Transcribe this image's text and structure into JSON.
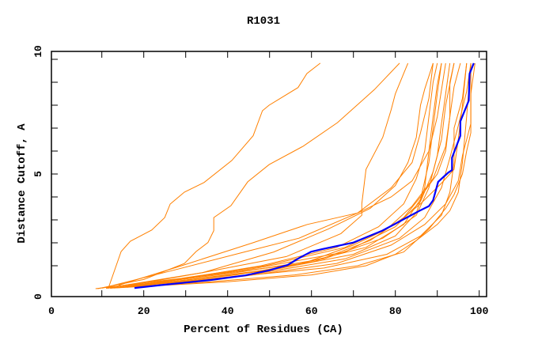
{
  "chart_data": {
    "type": "line",
    "title": "R1031",
    "xlabel": "Percent of Residues (CA)",
    "ylabel": "Distance Cutoff, A",
    "xlim": [
      0,
      100
    ],
    "ylim": [
      0,
      10
    ],
    "x_ticks": [
      "0",
      "20",
      "40",
      "60",
      "80",
      "100"
    ],
    "y_ticks": [
      "0",
      "5",
      "10"
    ],
    "grid": false,
    "colors": {
      "models": "#ff8000",
      "highlight": "#0000ff"
    },
    "series": [
      {
        "highlight": false,
        "points": [
          [
            11.5,
            0
          ],
          [
            14.6,
            1.62
          ],
          [
            16.8,
            2.07
          ],
          [
            21.9,
            2.56
          ],
          [
            25,
            3.1
          ],
          [
            26.3,
            3.69
          ],
          [
            29.7,
            4.21
          ],
          [
            34.4,
            4.63
          ],
          [
            41,
            5.59
          ],
          [
            46.1,
            6.67
          ],
          [
            48.3,
            7.76
          ],
          [
            49.9,
            8
          ],
          [
            56.8,
            8.77
          ],
          [
            58.9,
            9.38
          ],
          [
            62.1,
            9.83
          ]
        ]
      },
      {
        "highlight": false,
        "points": [
          [
            9,
            0
          ],
          [
            20,
            0.4
          ],
          [
            29.7,
            1.1
          ],
          [
            32.5,
            1.62
          ],
          [
            35.3,
            2.01
          ],
          [
            36.7,
            2.53
          ],
          [
            36.7,
            3.1
          ],
          [
            40.8,
            3.62
          ],
          [
            44.8,
            4.66
          ],
          [
            49.9,
            5.41
          ],
          [
            58,
            6.21
          ],
          [
            66.2,
            7.24
          ],
          [
            75,
            8.68
          ],
          [
            81,
            9.83
          ]
        ]
      },
      {
        "highlight": false,
        "points": [
          [
            12,
            0.02
          ],
          [
            36,
            0.6
          ],
          [
            58,
            1.1
          ],
          [
            70,
            1.9
          ],
          [
            78,
            2.6
          ],
          [
            84,
            3.6
          ],
          [
            89,
            4.8
          ],
          [
            92,
            6.2
          ],
          [
            93,
            7.5
          ],
          [
            94,
            8.8
          ],
          [
            95.5,
            9.83
          ]
        ]
      },
      {
        "highlight": false,
        "points": [
          [
            13,
            0.03
          ],
          [
            42,
            0.7
          ],
          [
            63,
            1.3
          ],
          [
            77,
            2.2
          ],
          [
            85,
            3.2
          ],
          [
            88,
            4.4
          ],
          [
            90,
            5.8
          ],
          [
            91,
            7.2
          ],
          [
            92,
            8.5
          ],
          [
            93,
            9.83
          ]
        ]
      },
      {
        "highlight": false,
        "points": [
          [
            14,
            0.05
          ],
          [
            47,
            0.9
          ],
          [
            68,
            1.6
          ],
          [
            80,
            2.7
          ],
          [
            86,
            3.8
          ],
          [
            89,
            5.1
          ],
          [
            91,
            6.5
          ],
          [
            92,
            8.0
          ],
          [
            94,
            9.83
          ]
        ]
      },
      {
        "highlight": false,
        "points": [
          [
            12,
            0.03
          ],
          [
            40,
            0.5
          ],
          [
            63,
            0.9
          ],
          [
            78,
            1.5
          ],
          [
            86,
            2.3
          ],
          [
            91,
            3.2
          ],
          [
            93,
            4.2
          ],
          [
            94,
            5.5
          ],
          [
            94,
            7.0
          ],
          [
            96,
            8.3
          ],
          [
            97,
            9.83
          ]
        ]
      },
      {
        "highlight": false,
        "points": [
          [
            16,
            0.06
          ],
          [
            53,
            0.9
          ],
          [
            73,
            1.8
          ],
          [
            82,
            2.8
          ],
          [
            86,
            3.9
          ],
          [
            88,
            5.5
          ],
          [
            89,
            7.0
          ],
          [
            90,
            8.5
          ],
          [
            91,
            9.83
          ]
        ]
      },
      {
        "highlight": false,
        "points": [
          [
            11,
            0.02
          ],
          [
            36,
            0.3
          ],
          [
            56,
            0.6
          ],
          [
            71,
            1.0
          ],
          [
            82,
            1.6
          ],
          [
            88,
            2.6
          ],
          [
            92,
            3.5
          ],
          [
            94,
            4.1
          ],
          [
            96,
            5.0
          ],
          [
            97,
            6.0
          ],
          [
            98,
            6.8
          ],
          [
            98,
            9.83
          ]
        ]
      },
      {
        "highlight": false,
        "points": [
          [
            18,
            0.1
          ],
          [
            48,
            1.0
          ],
          [
            66,
            1.8
          ],
          [
            76,
            2.7
          ],
          [
            82,
            3.7
          ],
          [
            85,
            4.8
          ],
          [
            87,
            6.0
          ],
          [
            88,
            7.5
          ],
          [
            89,
            9.0
          ],
          [
            90,
            9.83
          ]
        ]
      },
      {
        "highlight": false,
        "points": [
          [
            13,
            0.03
          ],
          [
            45,
            0.6
          ],
          [
            68,
            1.3
          ],
          [
            81,
            2.2
          ],
          [
            87,
            3.1
          ],
          [
            91,
            4.4
          ],
          [
            93,
            5.7
          ],
          [
            95,
            7.1
          ],
          [
            97,
            8.6
          ],
          [
            98,
            9.83
          ]
        ]
      },
      {
        "highlight": false,
        "points": [
          [
            15,
            0.06
          ],
          [
            50,
            0.8
          ],
          [
            70,
            1.5
          ],
          [
            80,
            2.3
          ],
          [
            85,
            3.3
          ],
          [
            87,
            4.4
          ],
          [
            88,
            6.0
          ],
          [
            89,
            7.5
          ],
          [
            90,
            8.9
          ],
          [
            91,
            9.83
          ]
        ]
      },
      {
        "highlight": false,
        "points": [
          [
            12,
            0.03
          ],
          [
            42,
            0.6
          ],
          [
            61,
            1.2
          ],
          [
            74,
            2.1
          ],
          [
            82,
            3.1
          ],
          [
            86,
            4.0
          ],
          [
            90,
            5.0
          ],
          [
            92,
            6.0
          ],
          [
            93,
            7.5
          ],
          [
            93,
            9.0
          ],
          [
            94,
            9.83
          ]
        ]
      },
      {
        "highlight": false,
        "points": [
          [
            8.5,
            0
          ],
          [
            29,
            0.45
          ],
          [
            49,
            1.0
          ],
          [
            68,
            1.8
          ],
          [
            80,
            2.8
          ],
          [
            86,
            3.7
          ],
          [
            91,
            4.6
          ],
          [
            94,
            5.2
          ],
          [
            95,
            6.5
          ],
          [
            96,
            8.0
          ],
          [
            97,
            9.83
          ]
        ]
      },
      {
        "highlight": false,
        "points": [
          [
            11,
            0.02
          ],
          [
            34,
            0.7
          ],
          [
            51,
            1.6
          ],
          [
            64,
            2.6
          ],
          [
            74,
            3.5
          ],
          [
            80,
            4.5
          ],
          [
            83,
            5.5
          ],
          [
            85,
            6.6
          ],
          [
            86,
            8.0
          ],
          [
            87,
            8.7
          ],
          [
            89,
            9.83
          ]
        ]
      },
      {
        "highlight": false,
        "points": [
          [
            14,
            0.15
          ],
          [
            29,
            1.0
          ],
          [
            46,
            2.0
          ],
          [
            59,
            2.8
          ],
          [
            71,
            3.3
          ],
          [
            79,
            4.4
          ],
          [
            84,
            5.5
          ],
          [
            86,
            6.8
          ],
          [
            88,
            8.3
          ],
          [
            89,
            9.83
          ]
        ]
      },
      {
        "highlight": false,
        "points": [
          [
            10,
            0.02
          ],
          [
            27,
            0.8
          ],
          [
            44,
            1.6
          ],
          [
            57,
            2.2
          ],
          [
            71,
            3.3
          ],
          [
            79,
            4.0
          ],
          [
            84,
            4.7
          ],
          [
            88,
            6.0
          ],
          [
            90,
            7.5
          ],
          [
            92,
            9.83
          ]
        ]
      },
      {
        "highlight": false,
        "points": [
          [
            13,
            0.03
          ],
          [
            34,
            0.7
          ],
          [
            54,
            1.4
          ],
          [
            67,
            2.4
          ],
          [
            72,
            3.2
          ],
          [
            72,
            3.7
          ],
          [
            73,
            5.2
          ],
          [
            77,
            6.6
          ],
          [
            79,
            7.8
          ],
          [
            80,
            8.5
          ],
          [
            83,
            9.83
          ]
        ]
      },
      {
        "highlight": false,
        "points": [
          [
            12,
            0.02
          ],
          [
            40,
            0.3
          ],
          [
            60,
            0.6
          ],
          [
            73,
            1.0
          ],
          [
            80,
            1.5
          ],
          [
            85,
            2.1
          ],
          [
            90,
            2.8
          ],
          [
            93,
            3.4
          ],
          [
            95,
            4.2
          ],
          [
            96,
            5.5
          ],
          [
            97,
            7.5
          ],
          [
            98,
            9.83
          ]
        ]
      },
      {
        "highlight": false,
        "points": [
          [
            14,
            0.04
          ],
          [
            44,
            0.55
          ],
          [
            66,
            1.1
          ],
          [
            79,
            1.9
          ],
          [
            87,
            2.8
          ],
          [
            92,
            3.7
          ],
          [
            95,
            4.7
          ],
          [
            96,
            5.8
          ],
          [
            98,
            7.2
          ],
          [
            98,
            8.5
          ],
          [
            99,
            9.83
          ]
        ]
      },
      {
        "highlight": true,
        "points": [
          [
            17.8,
            0.03
          ],
          [
            24.7,
            0.17
          ],
          [
            36,
            0.38
          ],
          [
            44.2,
            0.58
          ],
          [
            49.9,
            0.8
          ],
          [
            54.3,
            1.03
          ],
          [
            57.1,
            1.34
          ],
          [
            59.9,
            1.61
          ],
          [
            62.5,
            1.72
          ],
          [
            70,
            2.01
          ],
          [
            76.9,
            2.53
          ],
          [
            81.9,
            3.02
          ],
          [
            85.7,
            3.39
          ],
          [
            88,
            3.6
          ],
          [
            89,
            3.85
          ],
          [
            90.2,
            4.66
          ],
          [
            92.6,
            5.06
          ],
          [
            93.5,
            5.17
          ],
          [
            93.5,
            5.71
          ],
          [
            95.5,
            6.67
          ],
          [
            95.5,
            7.3
          ],
          [
            97.5,
            8.2
          ],
          [
            97.7,
            9.37
          ],
          [
            98.7,
            9.83
          ]
        ]
      }
    ]
  }
}
